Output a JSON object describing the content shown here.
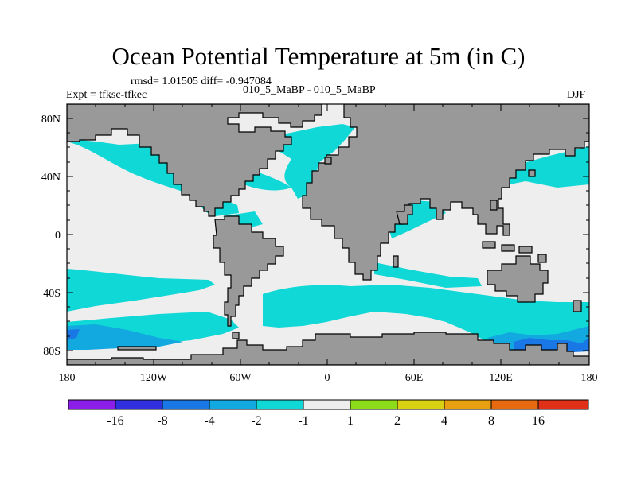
{
  "title": "Ocean Potential Temperature at 5m (in C)",
  "stats": "rmsd= 1.01505 diff= -0.947084",
  "expt": "Expt = tfksc-tfkec",
  "subtitle": "010_5_MaBP - 010_5_MaBP",
  "season": "DJF",
  "lat_labels": [
    "80N",
    "40N",
    "0",
    "40S",
    "80S"
  ],
  "lon_labels": [
    "180",
    "120W",
    "60W",
    "0",
    "60E",
    "120E",
    "180"
  ],
  "colorbar": {
    "labels": [
      "-16",
      "-8",
      "-4",
      "-2",
      "-1",
      "1",
      "2",
      "4",
      "8",
      "16"
    ],
    "colors": [
      "#8b1ee8",
      "#3030e0",
      "#1a78e6",
      "#12a8e0",
      "#10d8d6",
      "#eeeeee",
      "#8cdc1a",
      "#d8d010",
      "#e8a010",
      "#e86a10",
      "#e03018"
    ]
  },
  "map_colors": {
    "land": "#999999",
    "ocean_neutral": "#eeeeee",
    "band_m1": "#10d8d6",
    "band_m2": "#12a8e0",
    "band_m4": "#1a78e6"
  }
}
